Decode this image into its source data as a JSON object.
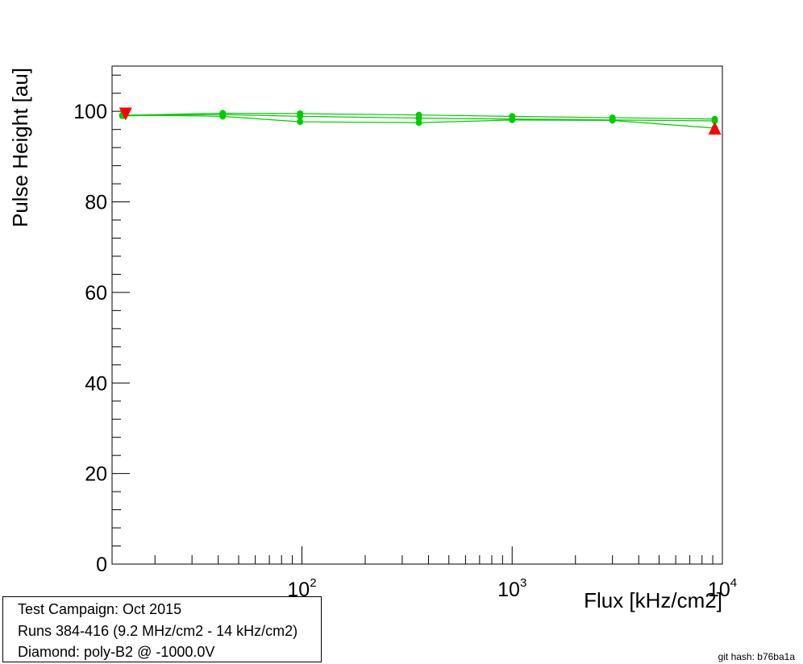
{
  "chart_data": {
    "type": "line",
    "xlabel": "Flux [kHz/cm2]",
    "ylabel": "Pulse Height [au]",
    "x_scale": "log",
    "xlim": [
      12.5,
      10000
    ],
    "ylim": [
      0,
      110
    ],
    "x_ticks": [
      {
        "value": 100,
        "base": "10",
        "exp": "2"
      },
      {
        "value": 1000,
        "base": "10",
        "exp": "3"
      },
      {
        "value": 10000,
        "base": "10",
        "exp": "4"
      }
    ],
    "y_ticks": [
      0,
      20,
      40,
      60,
      80,
      100
    ],
    "grid": false,
    "series_color": "#00cc00",
    "marker_color": "#ff0000",
    "series": [
      {
        "x": [
          14,
          42,
          98,
          360,
          1000,
          3000,
          9200
        ],
        "y": [
          99.1,
          99.6,
          99.5,
          99.2,
          98.9,
          98.6,
          98.3
        ]
      },
      {
        "x": [
          14,
          42,
          98,
          360,
          1000,
          3000,
          9200
        ],
        "y": [
          99.0,
          99.3,
          98.9,
          98.5,
          98.3,
          98.1,
          97.9
        ]
      },
      {
        "x": [
          14,
          42,
          98,
          360,
          1000,
          3000,
          9200
        ],
        "y": [
          99.2,
          98.9,
          97.7,
          97.5,
          98.1,
          98.0,
          96.3
        ]
      }
    ],
    "extreme_markers": [
      {
        "kind": "max",
        "x": 14.5,
        "y": 99.4
      },
      {
        "kind": "min",
        "x": 9200,
        "y": 96.3
      }
    ]
  },
  "info": {
    "campaign": "Test Campaign: Oct 2015",
    "runs": "Runs 384-416 (9.2 MHz/cm2 - 14 kHz/cm2)",
    "diamond": "Diamond: poly-B2 @ -1000.0V"
  },
  "git_hash": "git hash: b76ba1a"
}
